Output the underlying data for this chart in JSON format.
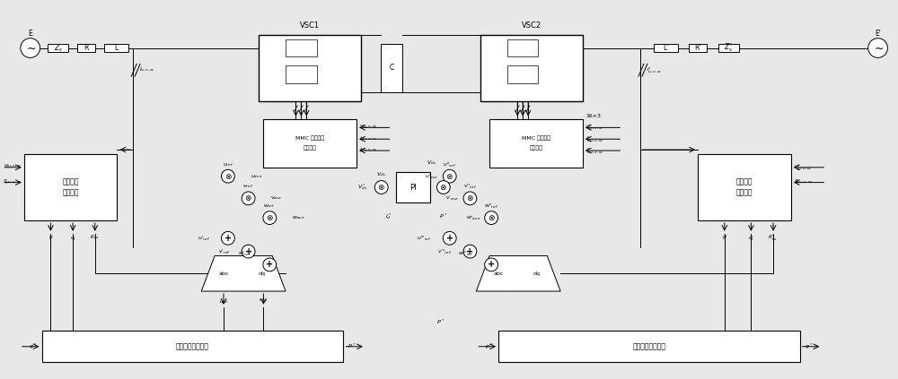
{
  "figsize": [
    10.0,
    4.23
  ],
  "dpi": 100,
  "bg_color": "#e8e8e8",
  "vsc1_label": "VSC1",
  "vsc2_label": "VSC2",
  "mmc1_line1": "MMC 触发脉冲",
  "mmc1_line2": "生成模块",
  "mmc2_line1": "MMC 触发脉冲",
  "mmc2_line2": "生成模块",
  "vfc1_line1": "虚拟磁链",
  "vfc1_line2": "计算模块",
  "vfc2_line1": "虚拟磁链",
  "vfc2_line2": "计算模块",
  "pcl1_label": "变流器功率控制环",
  "pcl2_label": "变流器功率控制环",
  "pi_label": "PI",
  "16x3_label": "16×3",
  "e_left": "E",
  "e_right": "E'",
  "zs_left": "Z_s",
  "zs_right": "Z_s'",
  "r_left": "R",
  "r_right": "R'",
  "l_left": "L",
  "l_right": "L'",
  "c_label": "C"
}
